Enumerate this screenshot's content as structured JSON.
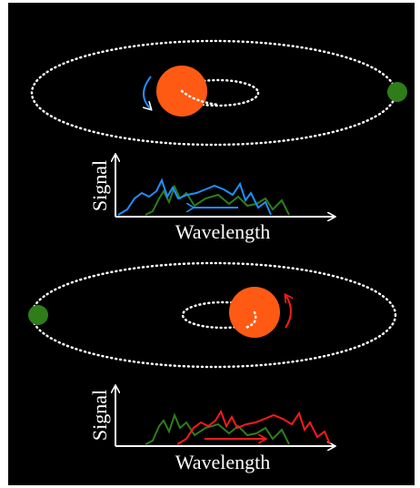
{
  "panels": [
    {
      "y_label": "Signal",
      "x_label": "Wavelength"
    },
    {
      "y_label": "Signal",
      "x_label": "Wavelength"
    }
  ]
}
